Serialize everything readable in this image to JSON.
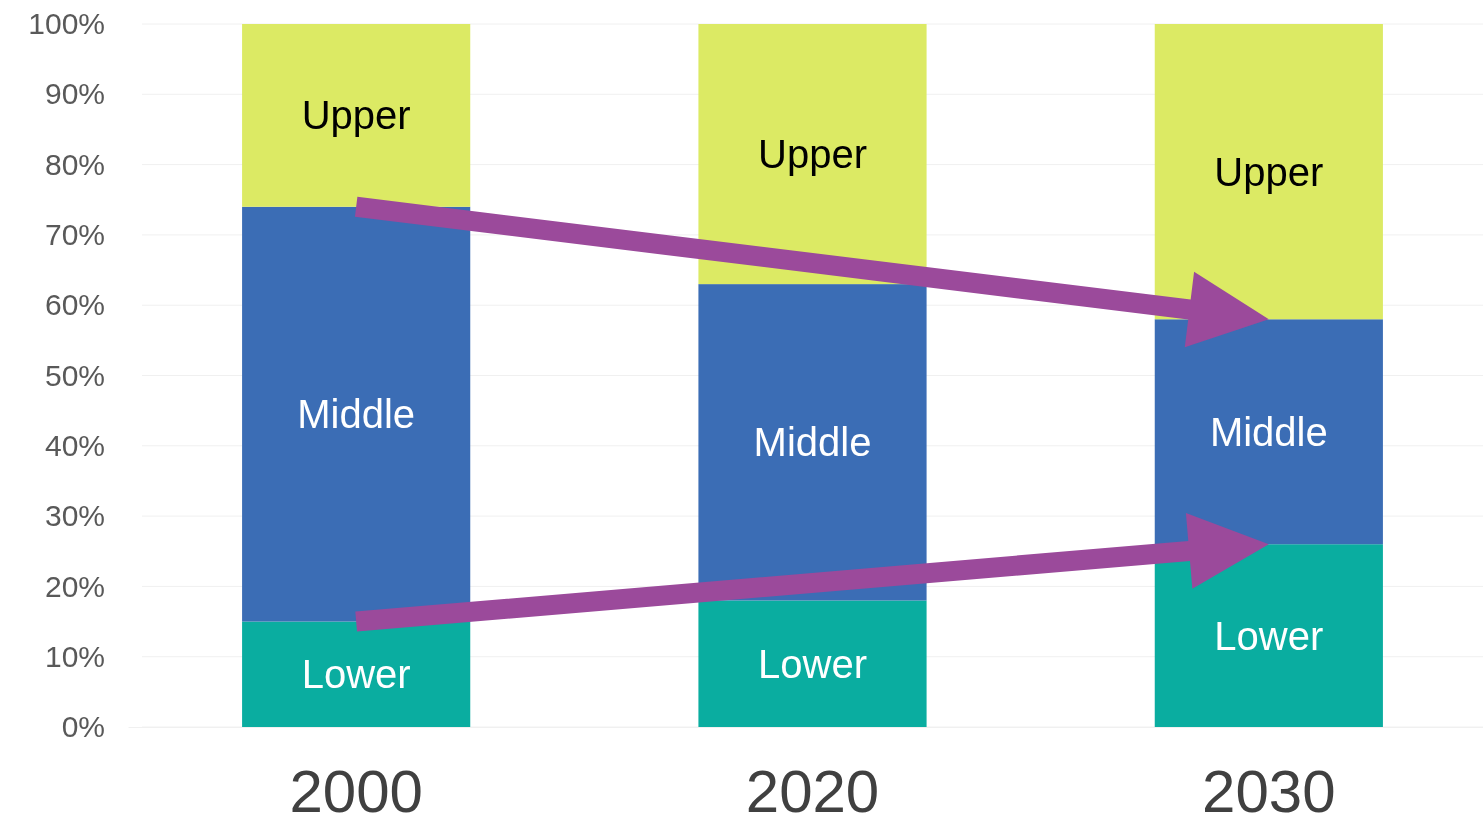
{
  "chart_data": {
    "type": "bar",
    "stacked": true,
    "categories": [
      "2000",
      "2020",
      "2030"
    ],
    "series": [
      {
        "name": "Lower",
        "color": "#0aada0",
        "values": [
          15,
          18,
          26
        ]
      },
      {
        "name": "Middle",
        "color": "#3b6db5",
        "values": [
          59,
          45,
          32
        ]
      },
      {
        "name": "Upper",
        "color": "#dcea64",
        "values": [
          26,
          37,
          42
        ]
      }
    ],
    "ylim": [
      0,
      100
    ],
    "yticks": [
      {
        "value": 0,
        "label": "0%"
      },
      {
        "value": 10,
        "label": "10%"
      },
      {
        "value": 20,
        "label": "20%"
      },
      {
        "value": 30,
        "label": "30%"
      },
      {
        "value": 40,
        "label": "40%"
      },
      {
        "value": 50,
        "label": "50%"
      },
      {
        "value": 60,
        "label": "60%"
      },
      {
        "value": 70,
        "label": "70%"
      },
      {
        "value": 80,
        "label": "80%"
      },
      {
        "value": 90,
        "label": "90%"
      },
      {
        "value": 100,
        "label": "100%"
      }
    ],
    "grid": "y"
  }
}
